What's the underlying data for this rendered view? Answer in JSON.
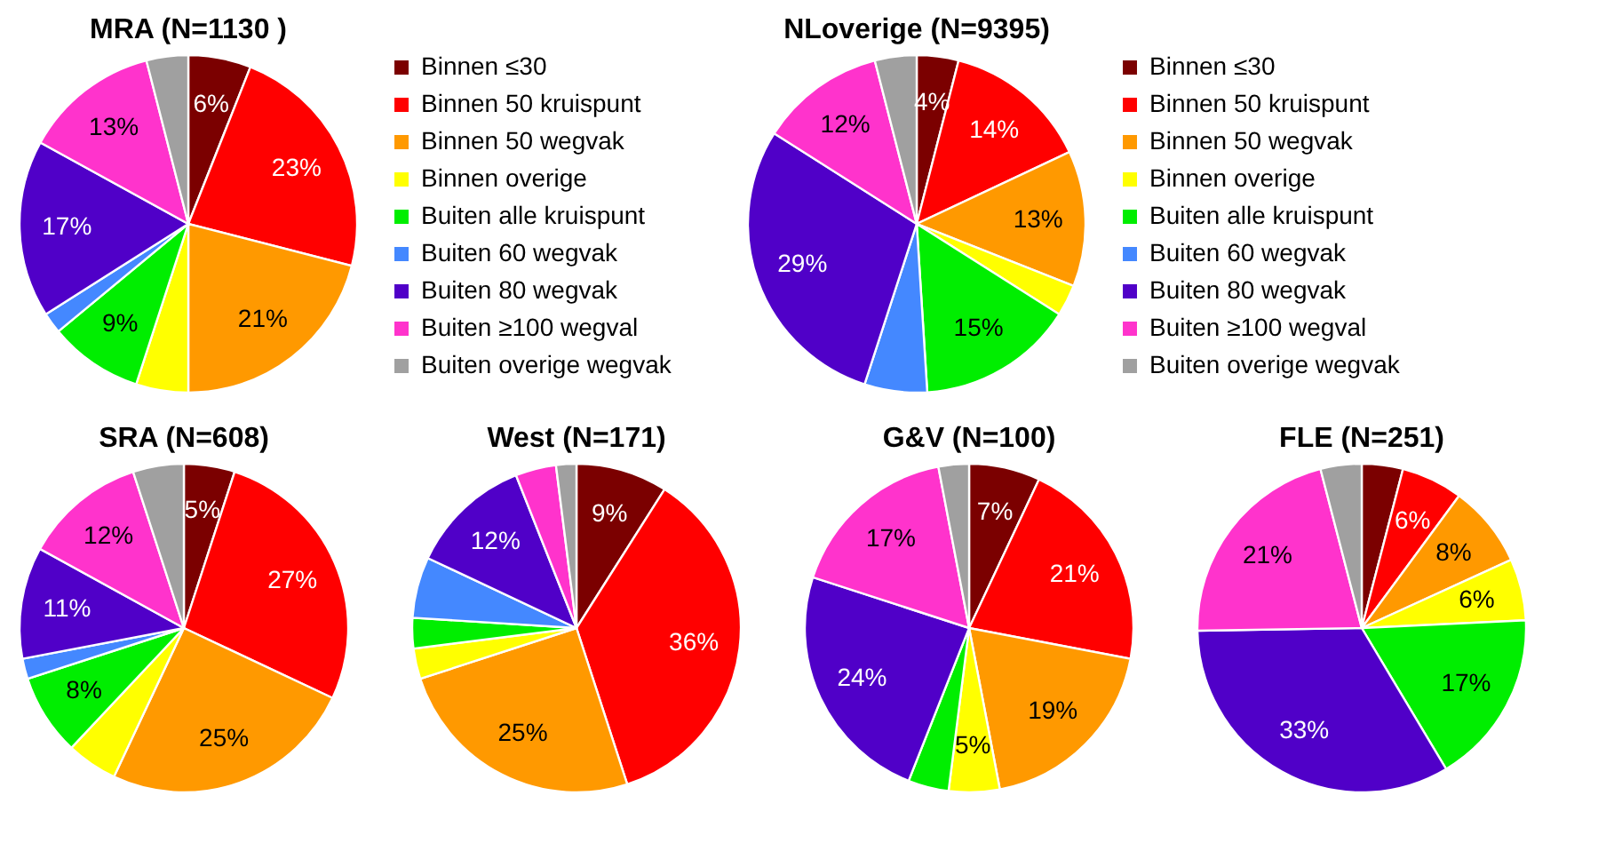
{
  "chart_data": [
    {
      "type": "pie",
      "title": "MRA (N=1130 )",
      "legend": "right",
      "categories": [
        "Binnen ≤30",
        "Binnen 50 kruispunt",
        "Binnen 50 wegvak",
        "Binnen overige",
        "Buiten alle kruispunt",
        "Buiten 60 wegvak",
        "Buiten 80 wegvak",
        "Buiten ≥100 wegval",
        "Buiten overige wegvak"
      ],
      "colors": [
        "#7b0000",
        "#ff0000",
        "#ff9900",
        "#ffff00",
        "#00ee00",
        "#4488ff",
        "#5000c8",
        "#ff33cc",
        "#a0a0a0"
      ],
      "values": [
        6,
        23,
        21,
        5,
        9,
        2,
        17,
        13,
        4
      ],
      "value_labels": [
        "6%",
        "23%",
        "21%",
        null,
        "9%",
        null,
        "17%",
        "13%",
        null
      ]
    },
    {
      "type": "pie",
      "title": "NLoverige (N=9395)",
      "legend": "right",
      "categories": [
        "Binnen ≤30",
        "Binnen 50 kruispunt",
        "Binnen 50 wegvak",
        "Binnen overige",
        "Buiten alle kruispunt",
        "Buiten 60 wegvak",
        "Buiten 80 wegvak",
        "Buiten ≥100 wegval",
        "Buiten overige wegvak"
      ],
      "colors": [
        "#7b0000",
        "#ff0000",
        "#ff9900",
        "#ffff00",
        "#00ee00",
        "#4488ff",
        "#5000c8",
        "#ff33cc",
        "#a0a0a0"
      ],
      "values": [
        4,
        14,
        13,
        3,
        15,
        6,
        29,
        12,
        4
      ],
      "value_labels": [
        "4%",
        "14%",
        "13%",
        null,
        "15%",
        null,
        "29%",
        "12%",
        null
      ]
    },
    {
      "type": "pie",
      "title": "SRA (N=608)",
      "categories": [
        null,
        null,
        null,
        null,
        null,
        null,
        null,
        null,
        null
      ],
      "colors": [
        "#7b0000",
        "#ff0000",
        "#ff9900",
        "#ffff00",
        "#00ee00",
        "#4488ff",
        "#5000c8",
        "#ff33cc",
        "#a0a0a0"
      ],
      "values": [
        5,
        27,
        25,
        5,
        8,
        2,
        11,
        12,
        5
      ],
      "value_labels": [
        "5%",
        "27%",
        "25%",
        null,
        "8%",
        null,
        "11%",
        "12%",
        null
      ]
    },
    {
      "type": "pie",
      "title": "West (N=171)",
      "categories": [
        null,
        null,
        null,
        null,
        null,
        null,
        null,
        null,
        null
      ],
      "colors": [
        "#7b0000",
        "#ff0000",
        "#ff9900",
        "#ffff00",
        "#00ee00",
        "#4488ff",
        "#5000c8",
        "#ff33cc",
        "#a0a0a0"
      ],
      "values": [
        9,
        36,
        25,
        3,
        3,
        6,
        12,
        4,
        2
      ],
      "value_labels": [
        "9%",
        "36%",
        "25%",
        null,
        null,
        null,
        "12%",
        null,
        null
      ]
    },
    {
      "type": "pie",
      "title": "G&V (N=100)",
      "categories": [
        null,
        null,
        null,
        null,
        null,
        null,
        null,
        null,
        null
      ],
      "colors": [
        "#7b0000",
        "#ff0000",
        "#ff9900",
        "#ffff00",
        "#00ee00",
        "#4488ff",
        "#5000c8",
        "#ff33cc",
        "#a0a0a0"
      ],
      "values": [
        7,
        21,
        19,
        5,
        4,
        0,
        24,
        17,
        3
      ],
      "value_labels": [
        "7%",
        "21%",
        "19%",
        "5%",
        null,
        null,
        "24%",
        "17%",
        null
      ]
    },
    {
      "type": "pie",
      "title": "FLE (N=251)",
      "categories": [
        null,
        null,
        null,
        null,
        null,
        null,
        null,
        null,
        null
      ],
      "colors": [
        "#7b0000",
        "#ff0000",
        "#ff9900",
        "#ffff00",
        "#00ee00",
        "#4488ff",
        "#5000c8",
        "#ff33cc",
        "#a0a0a0"
      ],
      "values": [
        4,
        6,
        8,
        6,
        17,
        0,
        33,
        21,
        4
      ],
      "value_labels": [
        null,
        "6%",
        "8%",
        "6%",
        "17%",
        null,
        "33%",
        "21%",
        null
      ]
    }
  ]
}
